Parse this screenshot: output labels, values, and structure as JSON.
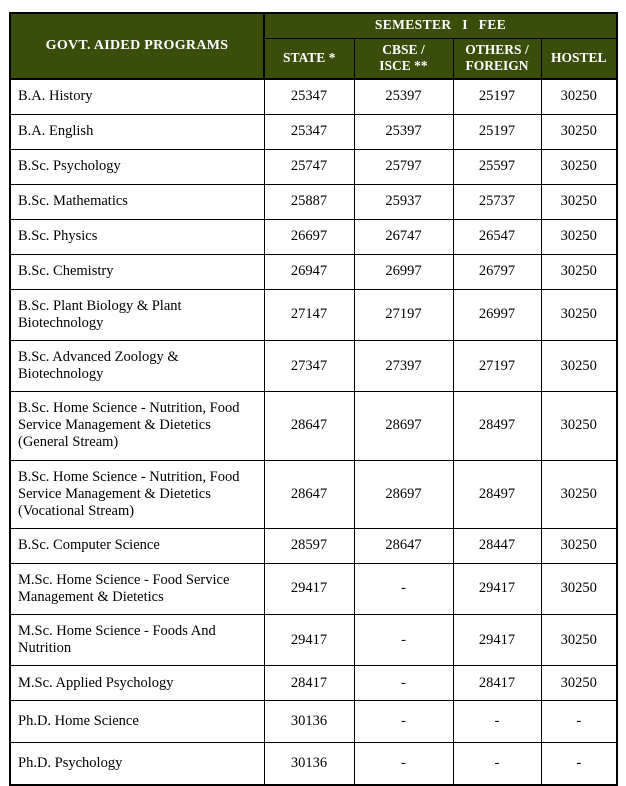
{
  "colors": {
    "header_bg": "#3a4e0c",
    "header_text": "#ffffff",
    "border": "#000000",
    "body_text": "#000000",
    "page_bg": "#ffffff"
  },
  "table": {
    "corner_header": "GOVT. AIDED PROGRAMS",
    "group_header": "SEMESTER I FEE",
    "columns": [
      "STATE *",
      "CBSE /\nISCE **",
      "OTHERS /\nFOREIGN",
      "HOSTEL"
    ],
    "rows": [
      [
        "B.A. History",
        "25347",
        "25397",
        "25197",
        "30250"
      ],
      [
        "B.A. English",
        "25347",
        "25397",
        "25197",
        "30250"
      ],
      [
        "B.Sc. Psychology",
        "25747",
        "25797",
        "25597",
        "30250"
      ],
      [
        "B.Sc. Mathematics",
        "25887",
        "25937",
        "25737",
        "30250"
      ],
      [
        "B.Sc. Physics",
        "26697",
        "26747",
        "26547",
        "30250"
      ],
      [
        "B.Sc. Chemistry",
        "26947",
        "26997",
        "26797",
        "30250"
      ],
      [
        "B.Sc. Plant Biology & Plant Biotechnology",
        "27147",
        "27197",
        "26997",
        "30250"
      ],
      [
        "B.Sc. Advanced Zoology & Biotechnology",
        "27347",
        "27397",
        "27197",
        "30250"
      ],
      [
        "B.Sc. Home Science - Nutrition, Food Service Management & Dietetics (General Stream)",
        "28647",
        "28697",
        "28497",
        "30250"
      ],
      [
        "B.Sc. Home Science - Nutrition, Food Service Management & Dietetics (Vocational Stream)",
        "28647",
        "28697",
        "28497",
        "30250"
      ],
      [
        "B.Sc. Computer Science",
        "28597",
        "28647",
        "28447",
        "30250"
      ],
      [
        "M.Sc. Home Science - Food Service Management & Dietetics",
        "29417",
        "-",
        "29417",
        "30250"
      ],
      [
        "M.Sc. Home Science - Foods And Nutrition",
        "29417",
        "-",
        "29417",
        "30250"
      ],
      [
        "M.Sc. Applied Psychology",
        "28417",
        "-",
        "28417",
        "30250"
      ],
      [
        "Ph.D. Home Science",
        "30136",
        "-",
        "-",
        "-"
      ],
      [
        "Ph.D. Psychology",
        "30136",
        "-",
        "-",
        "-"
      ]
    ],
    "tall_row_indices": [
      14,
      15
    ]
  }
}
